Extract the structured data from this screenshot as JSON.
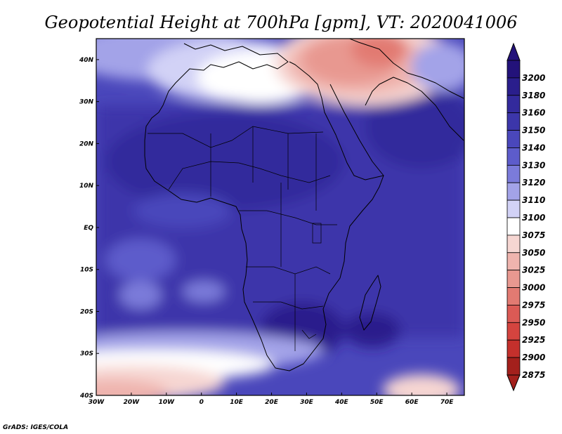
{
  "title": "Geopotential Height at 700hPa [gpm], VT: 2020041006",
  "credit": "GrADS: IGES/COLA",
  "map": {
    "lon_range": [
      -30,
      75
    ],
    "lat_range": [
      -40,
      45
    ],
    "lon_ticks": [
      {
        "value": -30,
        "label": "30W"
      },
      {
        "value": -20,
        "label": "20W"
      },
      {
        "value": -10,
        "label": "10W"
      },
      {
        "value": 0,
        "label": "0"
      },
      {
        "value": 10,
        "label": "10E"
      },
      {
        "value": 20,
        "label": "20E"
      },
      {
        "value": 30,
        "label": "30E"
      },
      {
        "value": 40,
        "label": "40E"
      },
      {
        "value": 50,
        "label": "50E"
      },
      {
        "value": 60,
        "label": "60E"
      },
      {
        "value": 70,
        "label": "70E"
      }
    ],
    "lat_ticks": [
      {
        "value": 40,
        "label": "40N"
      },
      {
        "value": 30,
        "label": "30N"
      },
      {
        "value": 20,
        "label": "20N"
      },
      {
        "value": 10,
        "label": "10N"
      },
      {
        "value": 0,
        "label": "EQ"
      },
      {
        "value": -10,
        "label": "10S"
      },
      {
        "value": -20,
        "label": "20S"
      },
      {
        "value": -30,
        "label": "30S"
      },
      {
        "value": -40,
        "label": "40S"
      }
    ]
  },
  "colorbar": {
    "levels": [
      {
        "label": "3200",
        "color": "#23127a"
      },
      {
        "label": "3180",
        "color": "#2a1e8c"
      },
      {
        "label": "3160",
        "color": "#332a9c"
      },
      {
        "label": "3150",
        "color": "#3c36aa"
      },
      {
        "label": "3140",
        "color": "#4a47bb"
      },
      {
        "label": "3130",
        "color": "#5d5ccb"
      },
      {
        "label": "3120",
        "color": "#7b7bda"
      },
      {
        "label": "3110",
        "color": "#a3a3e8"
      },
      {
        "label": "3100",
        "color": "#d2d2f6"
      },
      {
        "label": "3075",
        "color": "#ffffff"
      },
      {
        "label": "3050",
        "color": "#f6d6d2"
      },
      {
        "label": "3025",
        "color": "#efb4ae"
      },
      {
        "label": "3000",
        "color": "#e89890"
      },
      {
        "label": "2975",
        "color": "#e27a72"
      },
      {
        "label": "2950",
        "color": "#db5a55"
      },
      {
        "label": "2925",
        "color": "#d4443f"
      },
      {
        "label": "2900",
        "color": "#c4302c"
      },
      {
        "label": "2875",
        "color": "#a3201c"
      }
    ]
  }
}
